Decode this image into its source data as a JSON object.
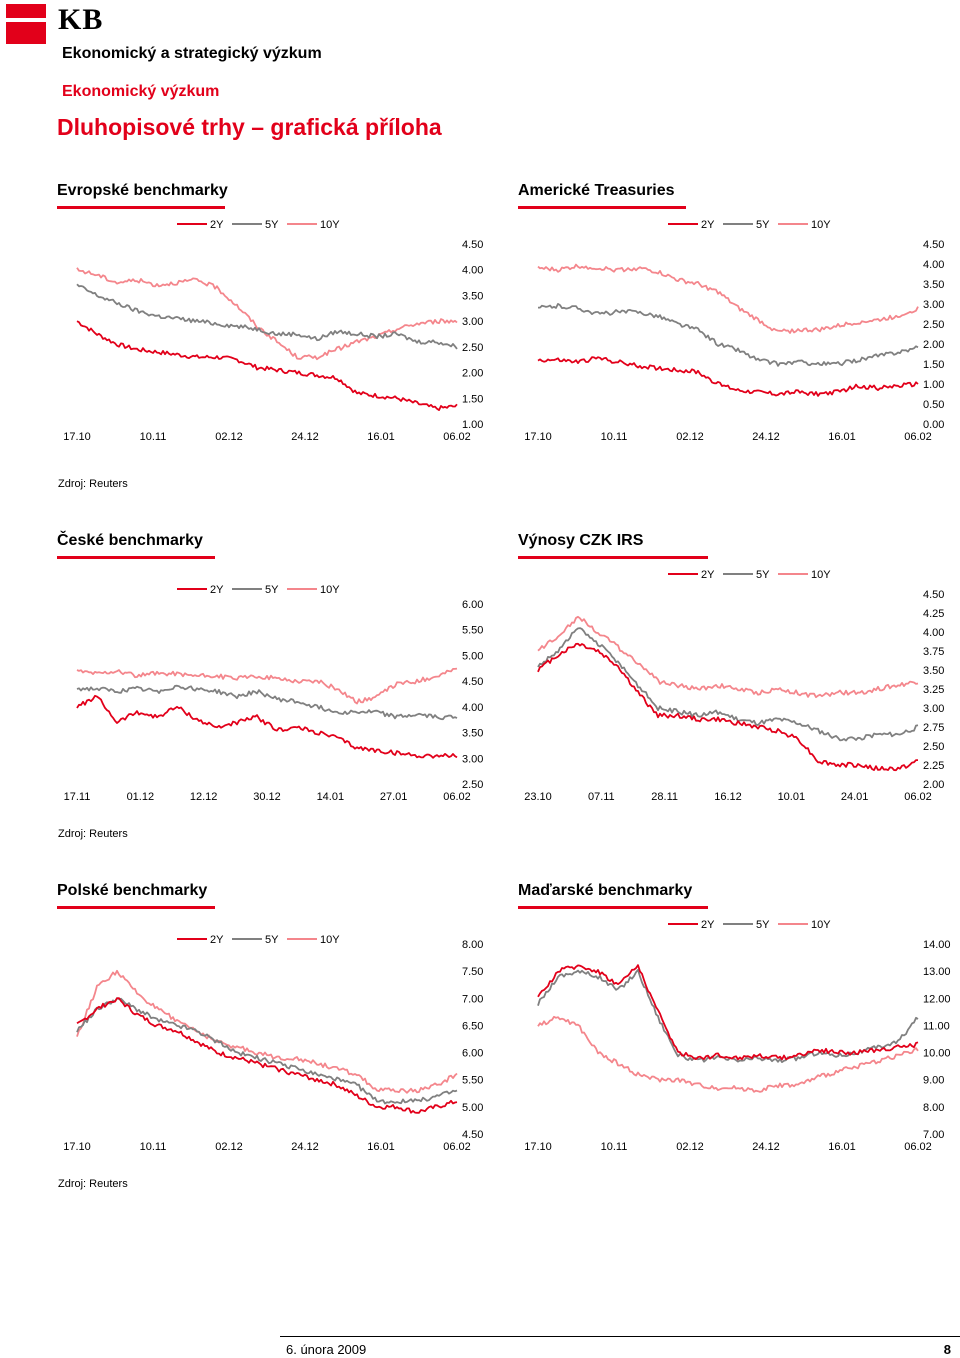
{
  "header": {
    "logo_text": "KB",
    "department": "Ekonomický a strategický výzkum",
    "subtitle": "Ekonomický výzkum",
    "title": "Dluhopisové trhy – grafická příloha"
  },
  "sources": [
    "Zdroj: Reuters",
    "Zdroj: Reuters",
    "Zdroj: Reuters"
  ],
  "footer": {
    "date": "6. února 2009",
    "page": "8"
  },
  "colors": {
    "2Y": "#e2001a",
    "5Y": "#808080",
    "10Y": "#f4868c",
    "accent": "#e2001a"
  },
  "chart_data": [
    {
      "title": "Evropské benchmarky",
      "type": "line",
      "legend": [
        "2Y",
        "5Y",
        "10Y"
      ],
      "legend_placement": "top",
      "x_ticks": [
        "17.10",
        "10.11",
        "02.12",
        "24.12",
        "16.01",
        "06.02"
      ],
      "y_ticks": [
        "4.50",
        "4.00",
        "3.50",
        "3.00",
        "2.50",
        "2.00",
        "1.50",
        "1.00"
      ],
      "ylim": [
        1.0,
        4.5
      ],
      "grid": false,
      "series": [
        {
          "name": "2Y",
          "color": "#e2001a",
          "values": [
            3.0,
            2.75,
            2.55,
            2.45,
            2.4,
            2.35,
            2.3,
            2.3,
            2.25,
            2.1,
            2.05,
            2.0,
            1.95,
            1.9,
            1.6,
            1.55,
            1.5,
            1.4,
            1.3,
            1.35
          ]
        },
        {
          "name": "5Y",
          "color": "#808080",
          "values": [
            3.7,
            3.5,
            3.35,
            3.2,
            3.1,
            3.05,
            3.0,
            2.95,
            2.9,
            2.85,
            2.75,
            2.75,
            2.65,
            2.8,
            2.75,
            2.7,
            2.75,
            2.6,
            2.6,
            2.5
          ]
        },
        {
          "name": "10Y",
          "color": "#f4868c",
          "values": [
            4.0,
            3.9,
            3.75,
            3.8,
            3.7,
            3.75,
            3.8,
            3.65,
            3.3,
            2.9,
            2.6,
            2.3,
            2.3,
            2.45,
            2.6,
            2.7,
            2.85,
            2.95,
            3.0,
            3.0
          ]
        }
      ]
    },
    {
      "title": "Americké Treasuries",
      "type": "line",
      "legend": [
        "2Y",
        "5Y",
        "10Y"
      ],
      "legend_placement": "top",
      "x_ticks": [
        "17.10",
        "10.11",
        "02.12",
        "24.12",
        "16.01",
        "06.02"
      ],
      "y_ticks": [
        "4.50",
        "4.00",
        "3.50",
        "3.00",
        "2.50",
        "2.00",
        "1.50",
        "1.00",
        "0.50",
        "0.00"
      ],
      "ylim": [
        0.0,
        4.5
      ],
      "grid": false,
      "series": [
        {
          "name": "2Y",
          "color": "#e2001a",
          "values": [
            1.6,
            1.6,
            1.55,
            1.65,
            1.55,
            1.45,
            1.4,
            1.35,
            1.3,
            1.0,
            0.85,
            0.8,
            0.75,
            0.8,
            0.75,
            0.8,
            0.95,
            0.9,
            0.95,
            1.0
          ]
        },
        {
          "name": "5Y",
          "color": "#808080",
          "values": [
            2.9,
            2.95,
            2.9,
            2.75,
            2.8,
            2.8,
            2.7,
            2.5,
            2.35,
            2.0,
            1.85,
            1.6,
            1.5,
            1.55,
            1.5,
            1.5,
            1.6,
            1.7,
            1.8,
            1.9
          ]
        },
        {
          "name": "10Y",
          "color": "#f4868c",
          "values": [
            3.9,
            3.85,
            3.95,
            3.9,
            3.85,
            3.9,
            3.8,
            3.6,
            3.5,
            3.3,
            2.9,
            2.6,
            2.3,
            2.35,
            2.35,
            2.45,
            2.55,
            2.6,
            2.7,
            2.9
          ]
        }
      ]
    },
    {
      "title": "České benchmarky",
      "type": "line",
      "legend": [
        "2Y",
        "5Y",
        "10Y"
      ],
      "legend_placement": "top",
      "x_ticks": [
        "17.11",
        "01.12",
        "12.12",
        "30.12",
        "14.01",
        "27.01",
        "06.02"
      ],
      "y_ticks": [
        "6.00",
        "5.50",
        "5.00",
        "4.50",
        "4.00",
        "3.50",
        "3.00",
        "2.50"
      ],
      "ylim": [
        2.5,
        6.0
      ],
      "grid": false,
      "series": [
        {
          "name": "2Y",
          "color": "#e2001a",
          "values": [
            4.0,
            4.2,
            3.7,
            3.9,
            3.8,
            4.0,
            3.75,
            3.6,
            3.7,
            3.8,
            3.55,
            3.6,
            3.5,
            3.4,
            3.2,
            3.15,
            3.1,
            3.05,
            3.05,
            3.05
          ]
        },
        {
          "name": "5Y",
          "color": "#808080",
          "values": [
            4.35,
            4.35,
            4.3,
            4.35,
            4.3,
            4.4,
            4.35,
            4.3,
            4.2,
            4.3,
            4.15,
            4.1,
            4.0,
            3.9,
            3.9,
            3.9,
            3.8,
            3.85,
            3.8,
            3.8
          ]
        },
        {
          "name": "10Y",
          "color": "#f4868c",
          "values": [
            4.7,
            4.65,
            4.7,
            4.6,
            4.65,
            4.65,
            4.6,
            4.6,
            4.55,
            4.6,
            4.55,
            4.5,
            4.5,
            4.35,
            4.1,
            4.2,
            4.45,
            4.5,
            4.6,
            4.75
          ]
        }
      ]
    },
    {
      "title": "Výnosy CZK IRS",
      "type": "line",
      "legend": [
        "2Y",
        "5Y",
        "10Y"
      ],
      "legend_placement": "top",
      "x_ticks": [
        "23.10",
        "07.11",
        "28.11",
        "16.12",
        "10.01",
        "24.01",
        "06.02"
      ],
      "y_ticks": [
        "4.50",
        "4.25",
        "4.00",
        "3.75",
        "3.50",
        "3.25",
        "3.00",
        "2.75",
        "2.50",
        "2.25",
        "2.00"
      ],
      "ylim": [
        2.0,
        4.5
      ],
      "grid": false,
      "series": [
        {
          "name": "2Y",
          "color": "#e2001a",
          "values": [
            3.5,
            3.7,
            3.85,
            3.75,
            3.55,
            3.2,
            2.9,
            2.9,
            2.85,
            2.85,
            2.8,
            2.75,
            2.7,
            2.6,
            2.3,
            2.25,
            2.25,
            2.2,
            2.2,
            2.3
          ]
        },
        {
          "name": "5Y",
          "color": "#808080",
          "values": [
            3.55,
            3.75,
            4.05,
            3.85,
            3.6,
            3.3,
            3.0,
            2.95,
            2.9,
            2.95,
            2.85,
            2.8,
            2.85,
            2.8,
            2.7,
            2.6,
            2.6,
            2.65,
            2.65,
            2.75
          ]
        },
        {
          "name": "10Y",
          "color": "#f4868c",
          "values": [
            3.75,
            3.95,
            4.2,
            4.0,
            3.8,
            3.6,
            3.35,
            3.3,
            3.25,
            3.3,
            3.25,
            3.2,
            3.25,
            3.2,
            3.15,
            3.2,
            3.2,
            3.25,
            3.3,
            3.35
          ]
        }
      ]
    },
    {
      "title": "Polské benchmarky",
      "type": "line",
      "legend": [
        "2Y",
        "5Y",
        "10Y"
      ],
      "legend_placement": "top",
      "x_ticks": [
        "17.10",
        "10.11",
        "02.12",
        "24.12",
        "16.01",
        "06.02"
      ],
      "y_ticks": [
        "8.00",
        "7.50",
        "7.00",
        "6.50",
        "6.00",
        "5.50",
        "5.00",
        "4.50"
      ],
      "ylim": [
        4.5,
        8.0
      ],
      "grid": false,
      "series": [
        {
          "name": "2Y",
          "color": "#e2001a",
          "values": [
            6.5,
            6.8,
            7.0,
            6.7,
            6.5,
            6.4,
            6.2,
            6.0,
            5.9,
            5.8,
            5.7,
            5.6,
            5.5,
            5.4,
            5.2,
            5.0,
            5.0,
            4.9,
            5.0,
            5.1
          ]
        },
        {
          "name": "5Y",
          "color": "#808080",
          "values": [
            6.4,
            6.8,
            7.0,
            6.8,
            6.6,
            6.5,
            6.4,
            6.2,
            6.0,
            5.9,
            5.8,
            5.7,
            5.6,
            5.5,
            5.4,
            5.1,
            5.1,
            5.1,
            5.2,
            5.3
          ]
        },
        {
          "name": "10Y",
          "color": "#f4868c",
          "values": [
            6.3,
            7.2,
            7.5,
            7.1,
            6.8,
            6.6,
            6.4,
            6.2,
            6.1,
            6.0,
            5.9,
            5.9,
            5.8,
            5.7,
            5.6,
            5.3,
            5.3,
            5.3,
            5.4,
            5.6
          ]
        }
      ]
    },
    {
      "title": "Maďarské benchmarky",
      "type": "line",
      "legend": [
        "2Y",
        "5Y",
        "10Y"
      ],
      "legend_placement": "top",
      "x_ticks": [
        "17.10",
        "10.11",
        "02.12",
        "24.12",
        "16.01",
        "06.02"
      ],
      "y_ticks": [
        "14.00",
        "13.00",
        "12.00",
        "11.00",
        "10.00",
        "9.00",
        "8.00",
        "7.00"
      ],
      "ylim": [
        7.0,
        14.0
      ],
      "grid": false,
      "series": [
        {
          "name": "2Y",
          "color": "#e2001a",
          "values": [
            12.0,
            13.0,
            13.2,
            13.0,
            12.5,
            13.2,
            11.5,
            10.0,
            9.8,
            9.9,
            9.8,
            9.9,
            9.8,
            9.9,
            10.1,
            10.0,
            10.0,
            10.1,
            10.2,
            10.3
          ]
        },
        {
          "name": "5Y",
          "color": "#808080",
          "values": [
            11.8,
            12.8,
            13.0,
            12.8,
            12.3,
            13.0,
            11.3,
            9.9,
            9.7,
            9.8,
            9.7,
            9.8,
            9.7,
            9.8,
            10.0,
            9.9,
            10.0,
            10.2,
            10.4,
            11.3
          ]
        },
        {
          "name": "10Y",
          "color": "#f4868c",
          "values": [
            11.0,
            11.3,
            11.0,
            10.0,
            9.6,
            9.2,
            9.0,
            9.0,
            8.8,
            8.7,
            8.7,
            8.6,
            8.8,
            8.8,
            9.1,
            9.3,
            9.5,
            9.7,
            9.9,
            10.1
          ]
        }
      ]
    }
  ]
}
